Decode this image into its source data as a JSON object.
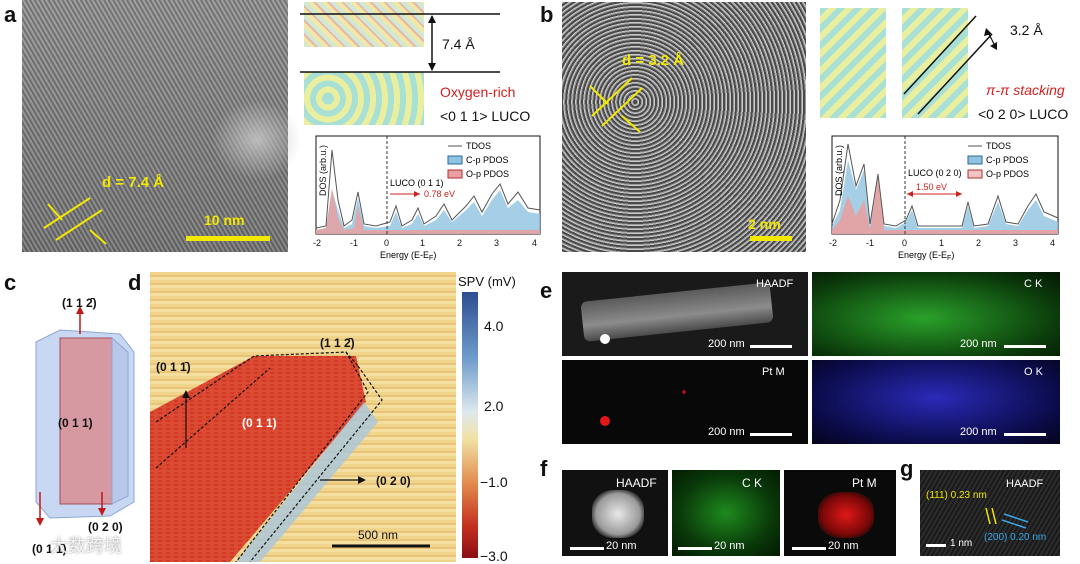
{
  "panels": {
    "a": {
      "label": "a",
      "d_spacing": "d = 7.4  Å",
      "scale": "10 nm",
      "interlayer": "7.4 Å",
      "surface_note": "Oxygen-rich",
      "luco_facet": "<0 1 1> LUCO",
      "dos": {
        "ylabel": "DOS (arb.u.)",
        "xlabel": "Energy (E-E",
        "xlabel_sub": "F",
        "xlabel_end": ")",
        "xticks": [
          "-2",
          "-1",
          "0",
          "1",
          "2",
          "3",
          "4"
        ],
        "legend": [
          "TDOS",
          "C-p PDOS",
          "O-p PDOS"
        ],
        "luco": "LUCO (0 1 1)",
        "gap": "0.78 eV"
      }
    },
    "b": {
      "label": "b",
      "d_spacing": "d = 3.2  Å",
      "scale": "2 nm",
      "interlayer": "3.2 Å",
      "surface_note": "π-π stacking",
      "luco_facet": "<0 2 0> LUCO",
      "dos": {
        "ylabel": "DOS (arb.u.)",
        "xlabel": "Energy (E-E",
        "xlabel_sub": "F",
        "xlabel_end": ")",
        "xticks": [
          "-2",
          "-1",
          "0",
          "1",
          "2",
          "3",
          "4"
        ],
        "legend": [
          "TDOS",
          "C-p PDOS",
          "O-p PDOS"
        ],
        "luco": "LUCO (0 2 0)",
        "gap": "1.50 eV"
      }
    },
    "c": {
      "label": "c",
      "top_facet": "(1 1 2̄)",
      "center_facet": "(0 1 1)",
      "bottom_facet": "(0 2 0)",
      "corner_facet": "(0 1 1̄)"
    },
    "d": {
      "label": "d",
      "facet_011bar": "(0 1 1̄)",
      "facet_112bar": "(1 1 2̄)",
      "facet_011": "(0 1 1)",
      "facet_020": "(0 2 0)",
      "scale": "500 nm",
      "colorbar_title": "SPV (mV)",
      "colorbar_ticks": [
        "4.0",
        "2.0",
        "−1.0",
        "−3.0"
      ]
    },
    "e": {
      "label": "e",
      "maps": [
        {
          "name": "HAADF",
          "scale": "200 nm"
        },
        {
          "name": "C K",
          "scale": "200 nm"
        },
        {
          "name": "Pt M",
          "scale": "200 nm"
        },
        {
          "name": "O K",
          "scale": "200 nm"
        }
      ]
    },
    "f": {
      "label": "f",
      "maps": [
        {
          "name": "HAADF",
          "scale": "20 nm"
        },
        {
          "name": "C K",
          "scale": "20 nm"
        },
        {
          "name": "Pt M",
          "scale": "20 nm"
        }
      ]
    },
    "g": {
      "label": "g",
      "title": "HAADF",
      "lattice_111": "(111) 0.23 nm",
      "lattice_200": "(200) 0.20 nm",
      "scale": "1 nm"
    }
  },
  "watermark": "大数跨境",
  "colors": {
    "yellow": "#f2e800",
    "red_text": "#d0201f",
    "cb_high": "#2b4f8e",
    "cb_low": "#8a0f14"
  }
}
